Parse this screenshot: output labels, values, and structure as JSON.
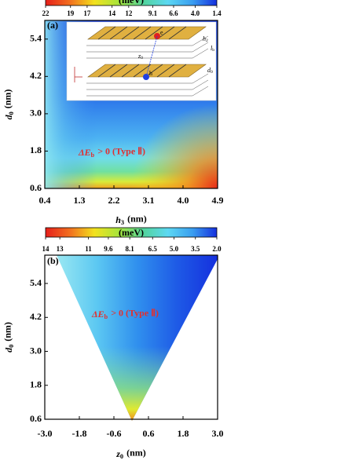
{
  "chart_data": [
    {
      "type": "contour",
      "panel_label": "(a)",
      "colorbar": {
        "label": "(meV)",
        "clim": [
          22,
          1.4
        ],
        "ticks": [
          22,
          19,
          17,
          14,
          12,
          9.1,
          6.6,
          {
            "value": 4,
            "label": "4.0"
          },
          1.4
        ],
        "colors": [
          "#e61e1a",
          "#f2701f",
          "#f2e21e",
          "#a6e43c",
          "#52d49c",
          "#5cd8f2",
          "#3a9ef0",
          "#1530de"
        ]
      },
      "xlabel": {
        "symbol": "h",
        "subscript": "3",
        "unit": "(nm)"
      },
      "ylabel": {
        "symbol": "d",
        "subscript": "0",
        "unit": "(nm)"
      },
      "xlim": [
        0.4,
        4.9
      ],
      "xticks": [
        0.4,
        1.3,
        2.2,
        3.1,
        {
          "value": 4,
          "label": "4.0"
        },
        4.9
      ],
      "ylim": [
        0.6,
        6.0
      ],
      "yticks": [
        0.6,
        1.8,
        {
          "value": 3,
          "label": "3.0"
        },
        4.2,
        5.4
      ],
      "annotation": {
        "symbol": "ΔE",
        "subscript": "b",
        "text": "> 0 (Type Ⅱ)"
      },
      "inset": {
        "electron": "e",
        "hole": "h",
        "h2": {
          "symbol": "h",
          "subscript": "2"
        },
        "lb": {
          "symbol": "l",
          "subscript": "b"
        },
        "d0": {
          "symbol": "d",
          "subscript": "0"
        },
        "z0": {
          "symbol": "z",
          "subscript": "0"
        }
      }
    },
    {
      "type": "contour",
      "panel_label": "(b)",
      "colorbar": {
        "label": "(meV)",
        "clim": [
          14,
          2
        ],
        "ticks": [
          14,
          13,
          11,
          9.6,
          8.1,
          6.5,
          {
            "value": 5,
            "label": "5.0"
          },
          3.5,
          {
            "value": 2,
            "label": "2.0"
          }
        ],
        "colors": [
          "#e61e1a",
          "#f2701f",
          "#f2e21e",
          "#a6e43c",
          "#52d49c",
          "#5cd8f2",
          "#3a9ef0",
          "#1530de"
        ]
      },
      "xlabel": {
        "symbol": "z",
        "subscript": "0",
        "unit": "(nm)"
      },
      "ylabel": {
        "symbol": "d",
        "subscript": "0",
        "unit": "(nm)"
      },
      "xlim": [
        -3,
        3
      ],
      "xticks": [
        {
          "value": -3,
          "label": "-3.0"
        },
        -1.8,
        -0.6,
        0.6,
        1.8,
        {
          "value": 3,
          "label": "3.0"
        }
      ],
      "ylim": [
        0.6,
        6.4
      ],
      "yticks": [
        0.6,
        1.8,
        {
          "value": 3,
          "label": "3.0"
        },
        4.2,
        5.4
      ],
      "annotation": {
        "symbol": "ΔE",
        "subscript": "b",
        "text": "> 0 (Type Ⅱ)"
      }
    }
  ]
}
